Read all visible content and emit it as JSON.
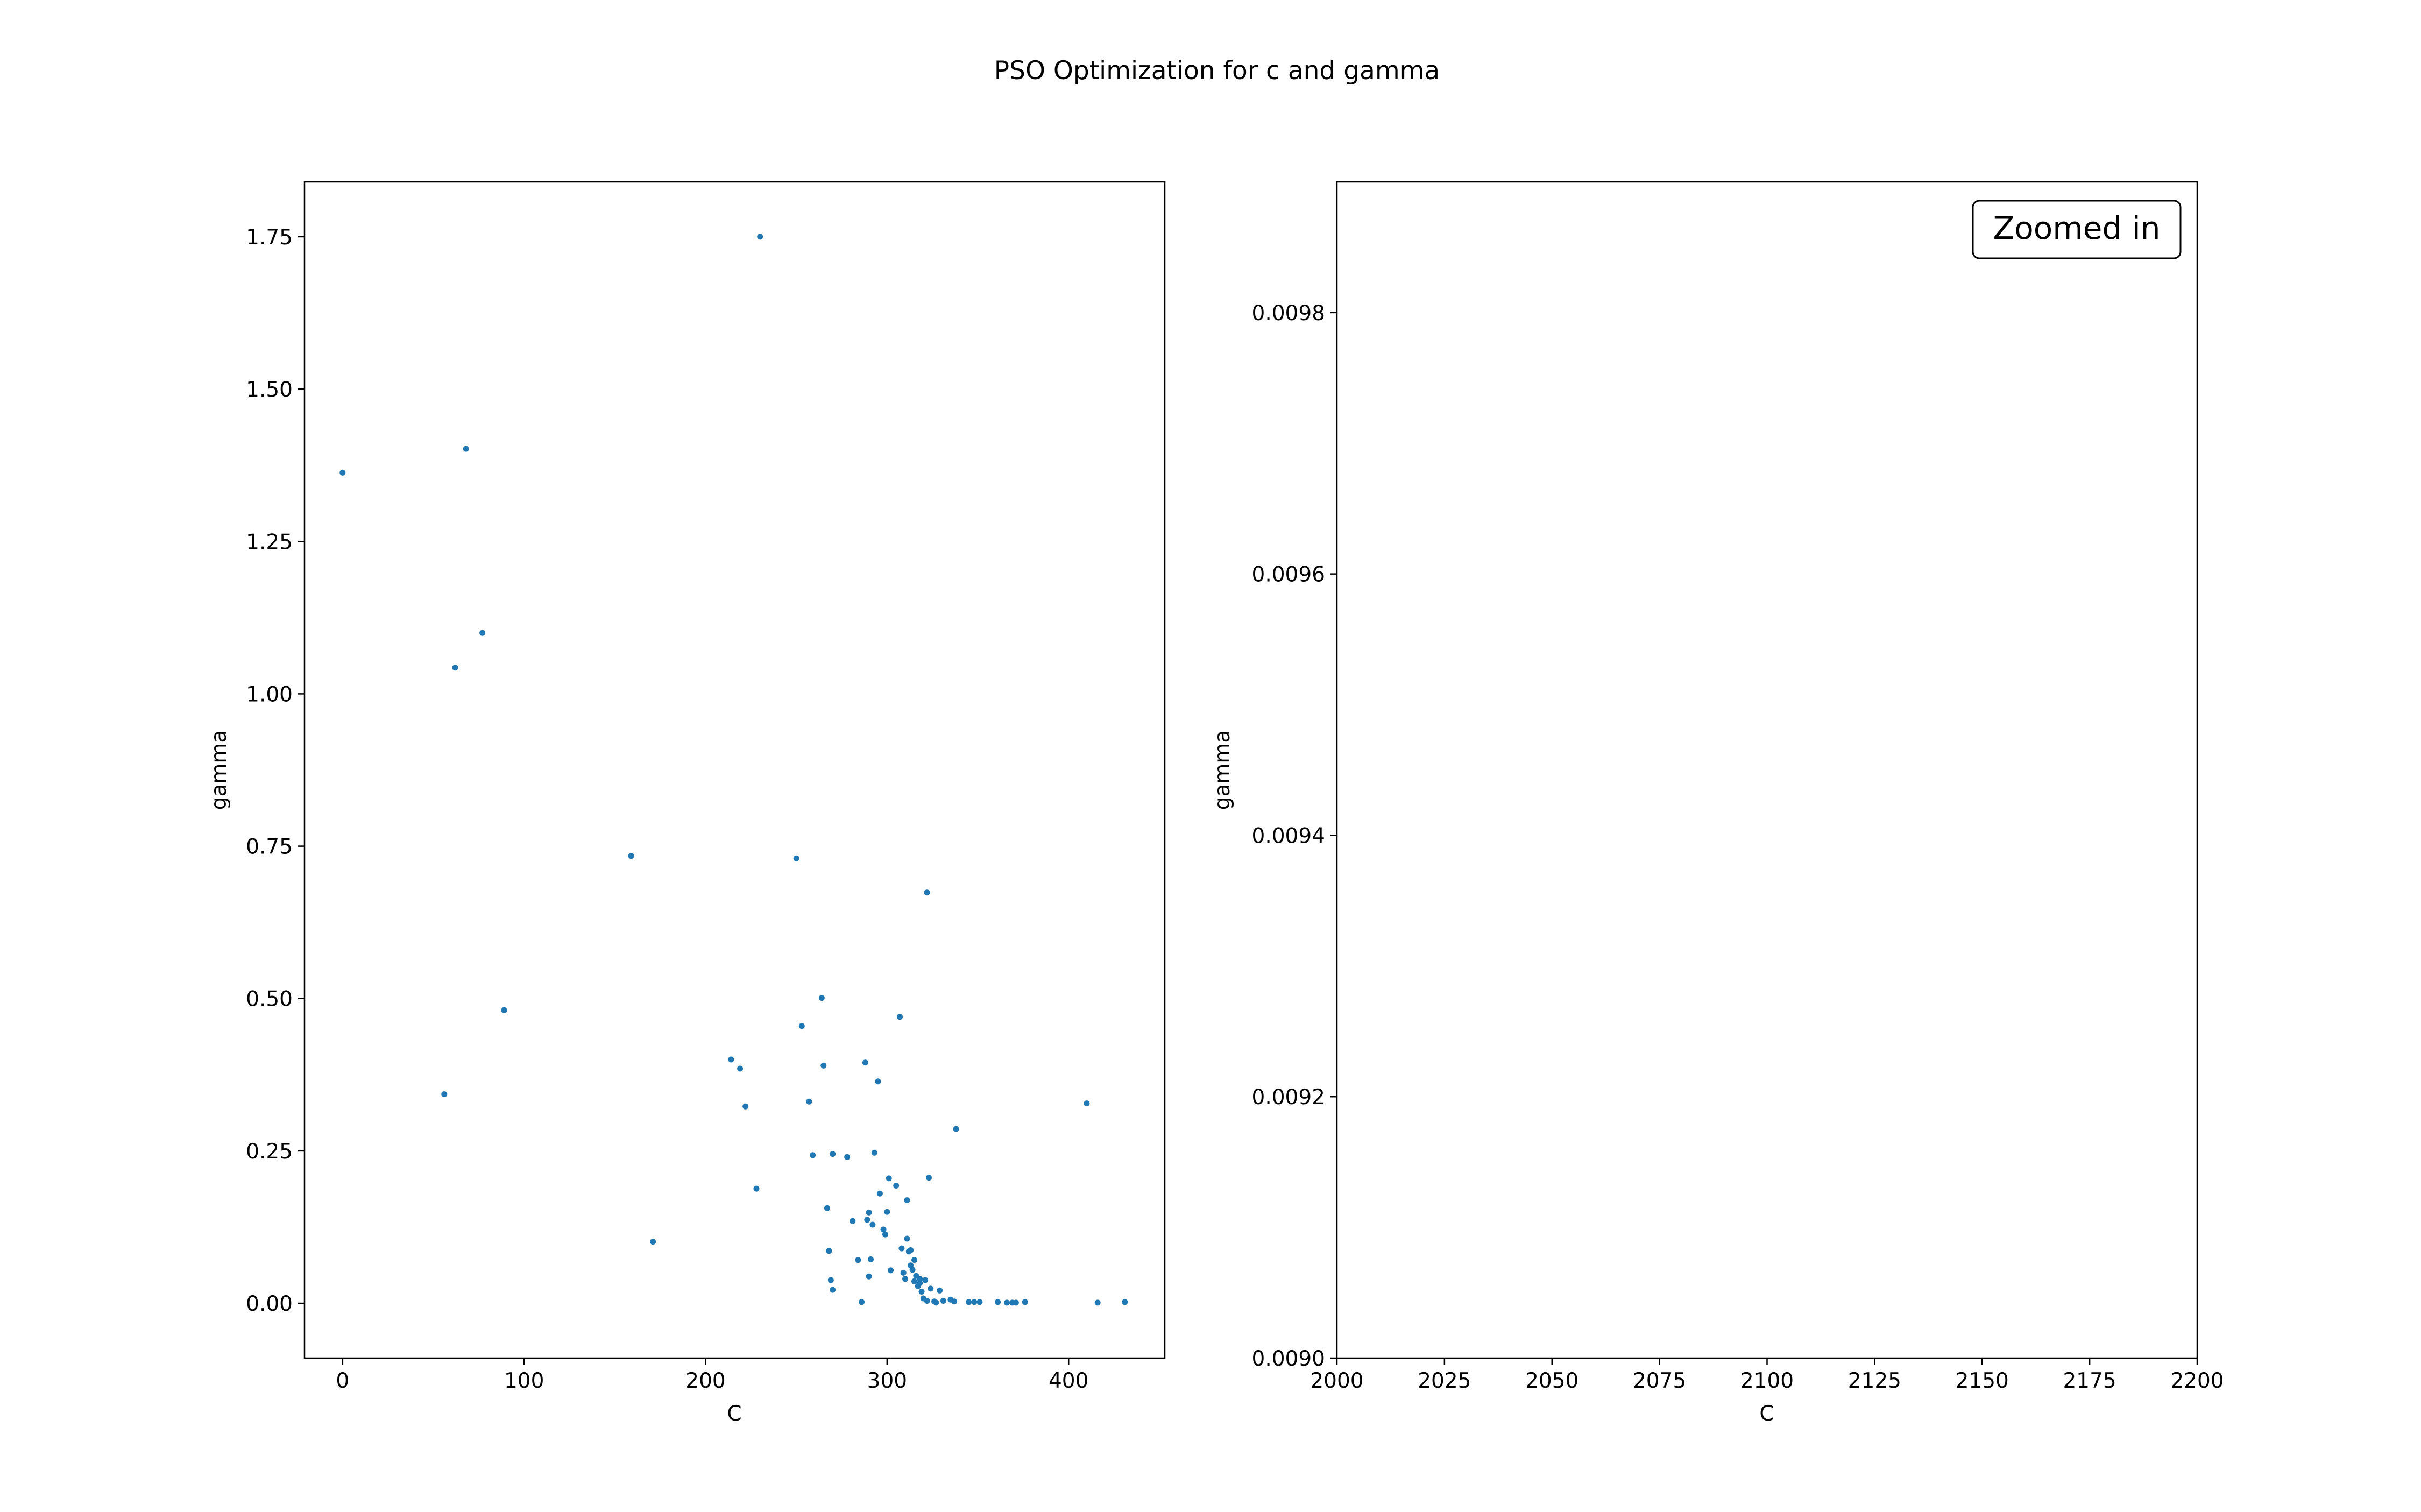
{
  "figure": {
    "title": "PSO Optimization for c and gamma",
    "point_color": "#1f77b4"
  },
  "chart_data": [
    {
      "type": "scatter",
      "xlabel": "C",
      "ylabel": "gamma",
      "xlim": [
        -21,
        453
      ],
      "ylim": [
        -0.09,
        1.84
      ],
      "xticks": [
        0,
        100,
        200,
        300,
        400
      ],
      "xtick_labels": [
        "0",
        "100",
        "200",
        "300",
        "400"
      ],
      "yticks": [
        0.0,
        0.25,
        0.5,
        0.75,
        1.0,
        1.25,
        1.5,
        1.75
      ],
      "ytick_labels": [
        "0.00",
        "0.25",
        "0.50",
        "0.75",
        "1.00",
        "1.25",
        "1.50",
        "1.75"
      ],
      "grid": false,
      "x": [
        0,
        56,
        62,
        68,
        77,
        89,
        159,
        171,
        214,
        219,
        222,
        228,
        230,
        250,
        253,
        257,
        259,
        264,
        265,
        267,
        268,
        269,
        270,
        270,
        278,
        281,
        284,
        286,
        288,
        289,
        290,
        290,
        291,
        292,
        293,
        295,
        296,
        298,
        299,
        300,
        301,
        302,
        305,
        307,
        308,
        309,
        310,
        311,
        311,
        312,
        313,
        313,
        314,
        315,
        315,
        316,
        317,
        318,
        318,
        319,
        320,
        321,
        322,
        322,
        323,
        324,
        326,
        327,
        329,
        331,
        335,
        337,
        338,
        345,
        348,
        351,
        361,
        366,
        369,
        371,
        376,
        410,
        416,
        431
      ],
      "y": [
        1.363,
        0.343,
        1.043,
        1.402,
        1.1,
        0.481,
        0.734,
        0.101,
        0.4,
        0.385,
        0.323,
        0.188,
        1.75,
        0.73,
        0.455,
        0.331,
        0.243,
        0.501,
        0.39,
        0.156,
        0.086,
        0.038,
        0.022,
        0.245,
        0.24,
        0.135,
        0.071,
        0.002,
        0.395,
        0.137,
        0.149,
        0.044,
        0.072,
        0.129,
        0.247,
        0.364,
        0.18,
        0.121,
        0.113,
        0.15,
        0.205,
        0.054,
        0.193,
        0.47,
        0.09,
        0.05,
        0.04,
        0.169,
        0.106,
        0.085,
        0.087,
        0.062,
        0.055,
        0.071,
        0.036,
        0.045,
        0.028,
        0.033,
        0.04,
        0.019,
        0.008,
        0.038,
        0.004,
        0.674,
        0.206,
        0.024,
        0.003,
        0.001,
        0.021,
        0.004,
        0.006,
        0.003,
        0.286,
        0.002,
        0.002,
        0.002,
        0.002,
        0.001,
        0.001,
        0.001,
        0.002,
        0.328,
        0.001,
        0.002
      ]
    },
    {
      "type": "scatter",
      "xlabel": "C",
      "ylabel": "gamma",
      "xlim": [
        2000,
        2200
      ],
      "ylim": [
        0.009,
        0.0099
      ],
      "xticks": [
        2000,
        2025,
        2050,
        2075,
        2100,
        2125,
        2150,
        2175,
        2200
      ],
      "xtick_labels": [
        "2000",
        "2025",
        "2050",
        "2075",
        "2100",
        "2125",
        "2150",
        "2175",
        "2200"
      ],
      "yticks": [
        0.009,
        0.0092,
        0.0094,
        0.0096,
        0.0098
      ],
      "ytick_labels": [
        "0.0090",
        "0.0092",
        "0.0094",
        "0.0096",
        "0.0098"
      ],
      "grid": false,
      "annotation": "Zoomed in",
      "annotation_placement": "top-right",
      "x": [],
      "y": []
    }
  ]
}
